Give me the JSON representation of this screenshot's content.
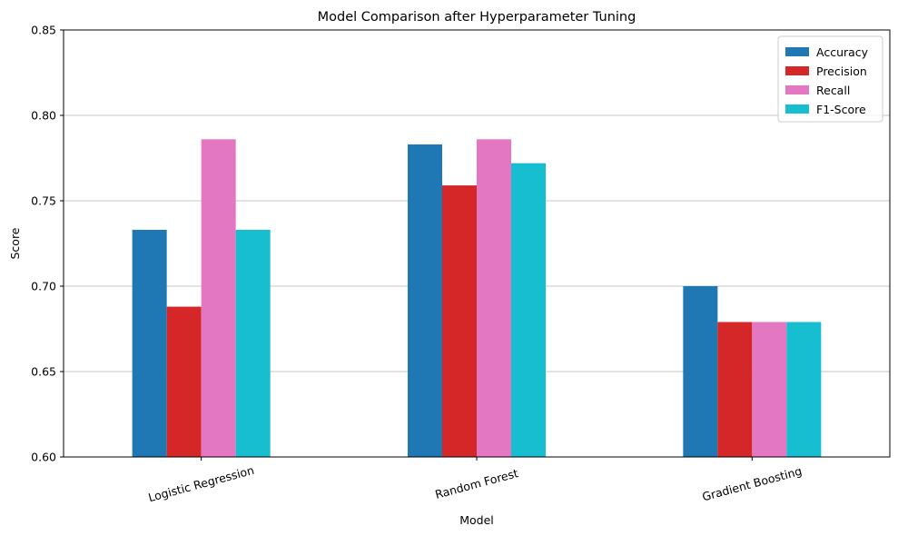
{
  "chart_data": {
    "type": "bar",
    "title": "Model Comparison after Hyperparameter Tuning",
    "xlabel": "Model",
    "ylabel": "Score",
    "categories": [
      "Logistic Regression",
      "Random Forest",
      "Gradient Boosting"
    ],
    "series": [
      {
        "name": "Accuracy",
        "color": "#1f77b4",
        "values": [
          0.733,
          0.783,
          0.7
        ]
      },
      {
        "name": "Precision",
        "color": "#d62728",
        "values": [
          0.688,
          0.759,
          0.679
        ]
      },
      {
        "name": "Recall",
        "color": "#e377c2",
        "values": [
          0.786,
          0.786,
          0.679
        ]
      },
      {
        "name": "F1-Score",
        "color": "#17becf",
        "values": [
          0.733,
          0.772,
          0.679
        ]
      }
    ],
    "ylim": [
      0.6,
      0.85
    ],
    "yticks": [
      "0.60",
      "0.65",
      "0.70",
      "0.75",
      "0.80",
      "0.85"
    ],
    "grid": "y",
    "legend_position": "top-right",
    "xtick_rotation_deg": 15
  }
}
